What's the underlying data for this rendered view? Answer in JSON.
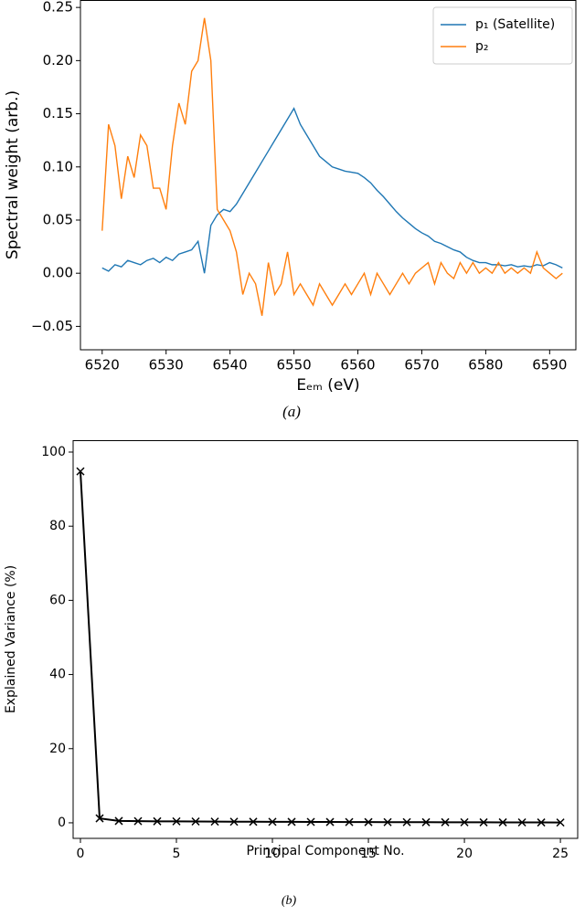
{
  "chart_data": [
    {
      "type": "line",
      "caption": "(a)",
      "xlabel": "Eₑₘ (eV)",
      "ylabel": "Spectral weight (arb.)",
      "x": [
        6520,
        6521,
        6522,
        6523,
        6524,
        6525,
        6526,
        6527,
        6528,
        6529,
        6530,
        6531,
        6532,
        6533,
        6534,
        6535,
        6536,
        6537,
        6538,
        6539,
        6540,
        6541,
        6542,
        6543,
        6544,
        6545,
        6546,
        6547,
        6548,
        6549,
        6550,
        6551,
        6552,
        6553,
        6554,
        6555,
        6556,
        6557,
        6558,
        6559,
        6560,
        6561,
        6562,
        6563,
        6564,
        6565,
        6566,
        6567,
        6568,
        6569,
        6570,
        6571,
        6572,
        6573,
        6574,
        6575,
        6576,
        6577,
        6578,
        6579,
        6580,
        6581,
        6582,
        6583,
        6584,
        6585,
        6586,
        6587,
        6588,
        6589,
        6590,
        6591,
        6592
      ],
      "series": [
        {
          "name": "p₁ (Satellite)",
          "color": "#1f77b4",
          "values": [
            0.005,
            0.002,
            0.008,
            0.006,
            0.012,
            0.01,
            0.008,
            0.012,
            0.014,
            0.01,
            0.015,
            0.012,
            0.018,
            0.02,
            0.022,
            0.03,
            0.0,
            0.045,
            0.055,
            0.06,
            0.058,
            0.065,
            0.075,
            0.085,
            0.095,
            0.105,
            0.115,
            0.125,
            0.135,
            0.145,
            0.155,
            0.14,
            0.13,
            0.12,
            0.11,
            0.105,
            0.1,
            0.098,
            0.096,
            0.095,
            0.094,
            0.09,
            0.085,
            0.078,
            0.072,
            0.065,
            0.058,
            0.052,
            0.047,
            0.042,
            0.038,
            0.035,
            0.03,
            0.028,
            0.025,
            0.022,
            0.02,
            0.015,
            0.012,
            0.01,
            0.01,
            0.008,
            0.008,
            0.007,
            0.008,
            0.006,
            0.007,
            0.006,
            0.008,
            0.007,
            0.01,
            0.008,
            0.005
          ]
        },
        {
          "name": "p₂",
          "color": "#ff7f0e",
          "values": [
            0.04,
            0.14,
            0.12,
            0.07,
            0.11,
            0.09,
            0.13,
            0.12,
            0.08,
            0.08,
            0.06,
            0.12,
            0.16,
            0.14,
            0.19,
            0.2,
            0.24,
            0.2,
            0.06,
            0.05,
            0.04,
            0.02,
            -0.02,
            0.0,
            -0.01,
            -0.04,
            0.01,
            -0.02,
            -0.01,
            0.02,
            -0.02,
            -0.01,
            -0.02,
            -0.03,
            -0.01,
            -0.02,
            -0.03,
            -0.02,
            -0.01,
            -0.02,
            -0.01,
            0.0,
            -0.02,
            0.0,
            -0.01,
            -0.02,
            -0.01,
            0.0,
            -0.01,
            0.0,
            0.005,
            0.01,
            -0.01,
            0.01,
            0.0,
            -0.005,
            0.01,
            0.0,
            0.01,
            0.0,
            0.005,
            0.0,
            0.01,
            0.0,
            0.005,
            0.0,
            0.005,
            0.0,
            0.02,
            0.005,
            0.0,
            -0.005,
            0.0
          ]
        }
      ],
      "xlim": [
        6516.6,
        6594.1
      ],
      "ylim": [
        -0.072,
        0.257
      ],
      "xticks": [
        6520,
        6530,
        6540,
        6550,
        6560,
        6570,
        6580,
        6590
      ],
      "yticks": [
        {
          "value": -0.05,
          "label": "−0.05"
        },
        {
          "value": 0,
          "label": "0.00"
        },
        0.05,
        {
          "value": 0.1,
          "label": "0.10"
        },
        0.15,
        {
          "value": 0.2,
          "label": "0.20"
        },
        0.25
      ],
      "legend": "upper right"
    },
    {
      "type": "line",
      "caption": "(b)",
      "xlabel": "Principal Component No.",
      "ylabel": "Explained Variance (%)",
      "x": [
        0,
        1,
        2,
        3,
        4,
        5,
        6,
        7,
        8,
        9,
        10,
        11,
        12,
        13,
        14,
        15,
        16,
        17,
        18,
        19,
        20,
        21,
        22,
        23,
        24,
        25
      ],
      "series": [
        {
          "color": "#000000",
          "marker": "x",
          "values": [
            94.8,
            1.2,
            0.5,
            0.45,
            0.4,
            0.38,
            0.35,
            0.32,
            0.3,
            0.28,
            0.26,
            0.25,
            0.23,
            0.22,
            0.2,
            0.19,
            0.18,
            0.17,
            0.16,
            0.15,
            0.14,
            0.13,
            0.12,
            0.11,
            0.1,
            0.08
          ]
        }
      ],
      "xlim": [
        -0.38,
        25.9
      ],
      "ylim": [
        -4.2,
        103.2
      ],
      "xticks": [
        0,
        5,
        10,
        15,
        20,
        25
      ],
      "yticks": [
        0,
        20,
        40,
        60,
        80,
        100
      ]
    }
  ]
}
